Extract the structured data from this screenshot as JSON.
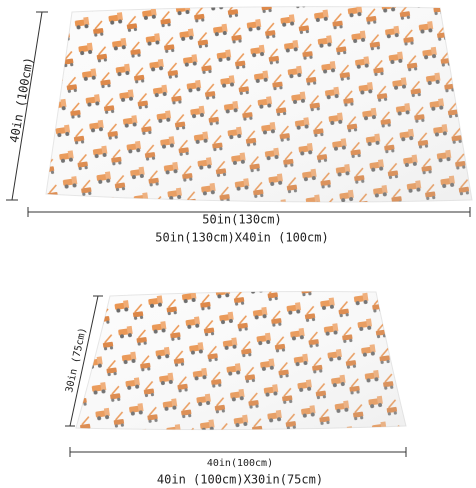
{
  "top_blanket": {
    "height_label": "40in (100cm)",
    "width_label": "50in(130cm)",
    "size_caption": "50in(130cm)X40in (100cm)"
  },
  "bottom_blanket": {
    "height_label": "30in (75cm)",
    "width_label": "40in(100cm)",
    "size_caption": "40in (100cm)X30in(75cm)"
  }
}
